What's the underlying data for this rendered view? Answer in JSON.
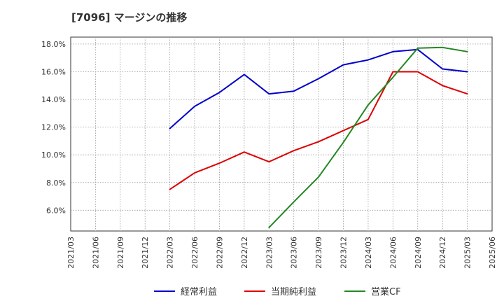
{
  "chart_data": {
    "type": "line",
    "title": "[7096]  マージンの推移",
    "xlabel": "",
    "ylabel": "",
    "categories": [
      "2021/03",
      "2021/06",
      "2021/09",
      "2021/12",
      "2022/03",
      "2022/06",
      "2022/09",
      "2022/12",
      "2023/03",
      "2023/06",
      "2023/09",
      "2023/12",
      "2024/03",
      "2024/06",
      "2024/09",
      "2024/12",
      "2025/03",
      "2025/06"
    ],
    "ylim": [
      4.5,
      18.5
    ],
    "yticks": [
      6.0,
      8.0,
      10.0,
      12.0,
      14.0,
      16.0,
      18.0
    ],
    "ytick_labels": [
      "6.0%",
      "8.0%",
      "10.0%",
      "12.0%",
      "14.0%",
      "16.0%",
      "18.0%"
    ],
    "grid": true,
    "legend_position": "bottom",
    "series": [
      {
        "name": "経常利益",
        "color": "#0000cc",
        "values": [
          null,
          null,
          null,
          null,
          11.9,
          13.5,
          14.5,
          15.8,
          14.4,
          14.6,
          15.5,
          16.5,
          16.85,
          17.45,
          17.6,
          16.2,
          16.0,
          null
        ]
      },
      {
        "name": "当期純利益",
        "color": "#dd0000",
        "values": [
          null,
          null,
          null,
          null,
          7.5,
          8.7,
          9.4,
          10.2,
          9.5,
          10.3,
          10.95,
          11.75,
          12.55,
          16.0,
          16.0,
          15.0,
          14.4,
          null
        ]
      },
      {
        "name": "営業CF",
        "color": "#228822",
        "values": [
          null,
          null,
          null,
          null,
          null,
          null,
          null,
          null,
          4.75,
          6.6,
          8.4,
          10.9,
          13.6,
          15.6,
          17.7,
          17.75,
          17.45,
          null
        ]
      }
    ]
  }
}
